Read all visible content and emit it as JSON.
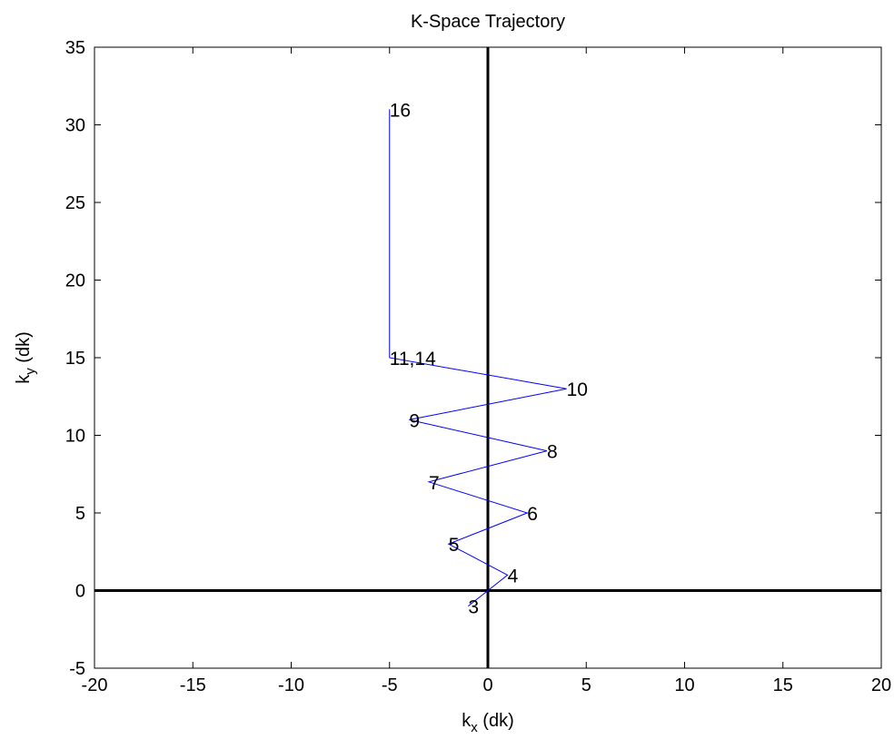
{
  "chart_data": {
    "type": "line",
    "title": "K-Space Trajectory",
    "xlabel": {
      "base": "k",
      "sub": "x",
      "rest": " (dk)"
    },
    "ylabel": {
      "base": "k",
      "sub": "y",
      "rest": " (dk)"
    },
    "xlim": [
      -20,
      20
    ],
    "ylim": [
      -5,
      35
    ],
    "xticks": [
      -20,
      -15,
      -10,
      -5,
      0,
      5,
      10,
      15,
      20
    ],
    "yticks": [
      -5,
      0,
      5,
      10,
      15,
      20,
      25,
      30,
      35
    ],
    "xtick_labels": [
      "-20",
      "-15",
      "-10",
      "-5",
      "0",
      "5",
      "10",
      "15",
      "20"
    ],
    "ytick_labels": [
      "-5",
      "0",
      "5",
      "10",
      "15",
      "20",
      "25",
      "30",
      "35"
    ],
    "grid": false,
    "line_color": "#0000ff",
    "axis_line_color": "#000000",
    "series": [
      {
        "x": [
          0,
          -1,
          1,
          -2,
          2,
          -3,
          3,
          -4,
          4,
          -5,
          -5,
          -5
        ],
        "y": [
          0,
          -1,
          1,
          3,
          5,
          7,
          9,
          11,
          13,
          15,
          15,
          31
        ]
      }
    ],
    "point_labels": [
      {
        "text": "3",
        "x": -1,
        "y": -1
      },
      {
        "text": "4",
        "x": 1,
        "y": 1
      },
      {
        "text": "5",
        "x": -2,
        "y": 3
      },
      {
        "text": "6",
        "x": 2,
        "y": 5
      },
      {
        "text": "7",
        "x": -3,
        "y": 7
      },
      {
        "text": "8",
        "x": 3,
        "y": 9
      },
      {
        "text": "9",
        "x": -4,
        "y": 11
      },
      {
        "text": "10",
        "x": 4,
        "y": 13
      },
      {
        "text": "11,14",
        "x": -5,
        "y": 15
      },
      {
        "text": "16",
        "x": -5,
        "y": 31
      }
    ]
  }
}
